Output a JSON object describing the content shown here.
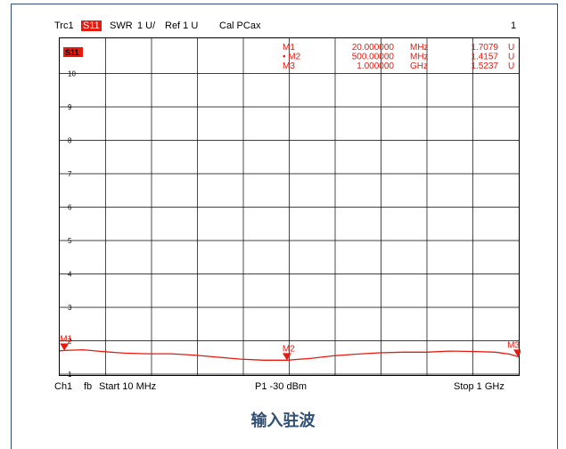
{
  "header": {
    "trace": "Trc1",
    "param": "S11",
    "format": "SWR",
    "scale": "1 U/",
    "ref": "Ref 1 U",
    "cal": "Cal PCax",
    "index": "1"
  },
  "plot_badge": "S11",
  "marker_table": [
    {
      "name": "M1",
      "active": false,
      "stimulus": "20.000000",
      "stim_unit": "MHz",
      "value": "1.7079",
      "unit": "U"
    },
    {
      "name": "M2",
      "active": true,
      "stimulus": "500.00000",
      "stim_unit": "MHz",
      "value": "1.4157",
      "unit": "U"
    },
    {
      "name": "M3",
      "active": false,
      "stimulus": "1.000000",
      "stim_unit": "GHz",
      "value": "1.5237",
      "unit": "U"
    }
  ],
  "footer": {
    "channel": "Ch1",
    "mode": "fb",
    "start": "Start  10 MHz",
    "power": "P1  -30 dBm",
    "stop": "Stop  1 GHz"
  },
  "caption": "输入驻波",
  "colors": {
    "trace": "#e8190f",
    "grid": "#000000",
    "badge": "#e8190f",
    "caption": "#2f4f74"
  },
  "chart_data": {
    "type": "line",
    "x_unit": "MHz",
    "xlim": [
      10,
      1000
    ],
    "ylim": [
      1,
      11
    ],
    "y_ticks": [
      "10",
      "9",
      "8",
      "7",
      "6",
      "5",
      "4",
      "3",
      "2",
      "1"
    ],
    "grid": true,
    "series": [
      {
        "name": "S11",
        "x": [
          10,
          20,
          60,
          100,
          150,
          200,
          250,
          300,
          350,
          400,
          450,
          500,
          550,
          600,
          650,
          700,
          750,
          800,
          850,
          900,
          950,
          980,
          1000
        ],
        "y": [
          1.7,
          1.71,
          1.73,
          1.68,
          1.63,
          1.61,
          1.61,
          1.57,
          1.51,
          1.45,
          1.42,
          1.42,
          1.47,
          1.55,
          1.6,
          1.64,
          1.66,
          1.66,
          1.69,
          1.68,
          1.66,
          1.6,
          1.52
        ]
      }
    ],
    "markers": [
      {
        "name": "M1",
        "x": 20,
        "y": 1.7079
      },
      {
        "name": "M2",
        "x": 500,
        "y": 1.4157
      },
      {
        "name": "M3",
        "x": 1000,
        "y": 1.5237
      }
    ]
  }
}
